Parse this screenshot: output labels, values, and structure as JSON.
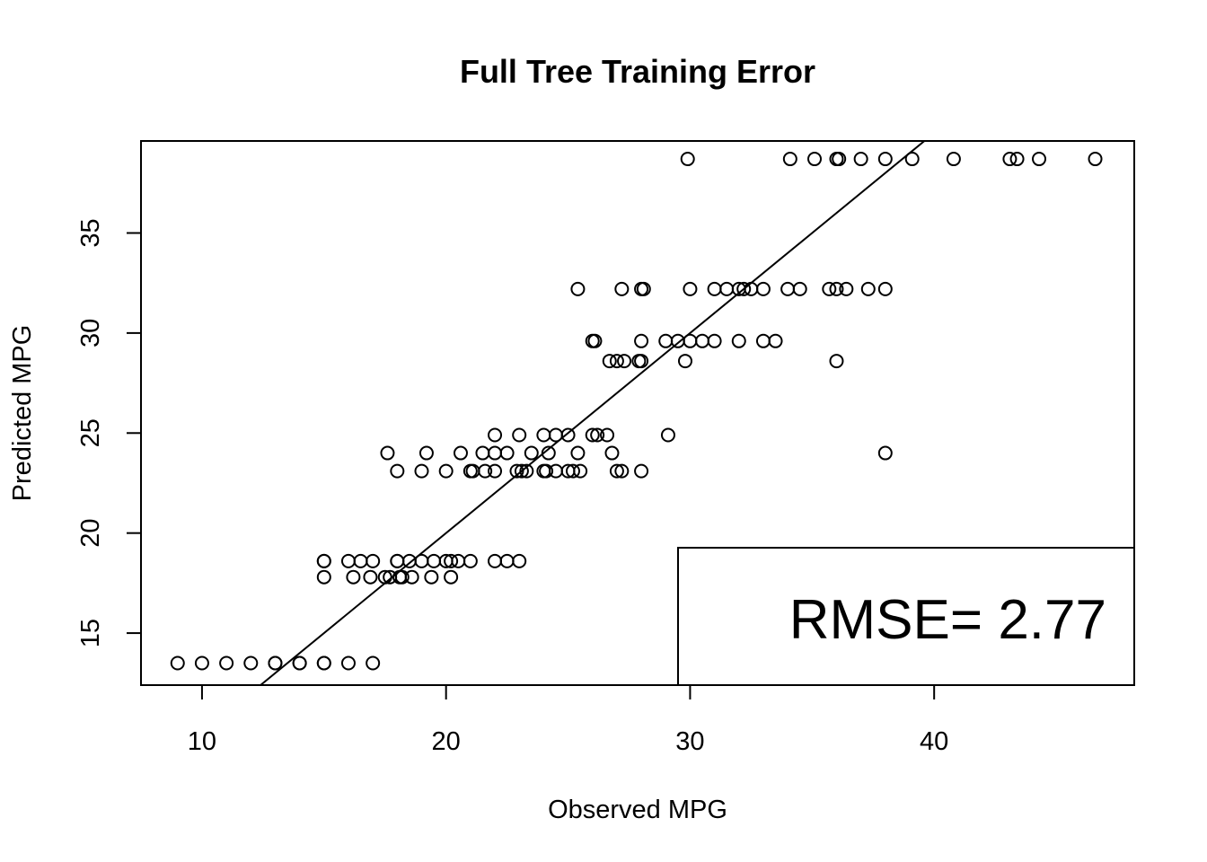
{
  "chart_data": {
    "type": "scatter",
    "title": "Full Tree Training Error",
    "xlabel": "Observed MPG",
    "ylabel": "Predicted MPG",
    "xlim": [
      7.5,
      48.2
    ],
    "ylim": [
      12.4,
      39.6
    ],
    "xticks": [
      10,
      20,
      30,
      40
    ],
    "yticks": [
      15,
      20,
      25,
      30,
      35
    ],
    "reference_line": {
      "slope": 1,
      "intercept": 0
    },
    "legend": {
      "text": "RMSE= 2.77",
      "position": "bottom-right"
    },
    "series": [
      {
        "x": [
          9,
          10,
          11,
          12,
          13,
          13,
          14,
          14,
          15,
          15,
          16,
          17,
          15,
          15,
          16,
          16.5,
          17,
          18,
          18,
          18.5,
          19,
          19.5,
          20,
          20.2,
          20.5,
          21,
          15,
          16.2,
          16.9,
          17.5,
          17.7,
          18.1,
          18.2,
          18.6,
          19.4,
          20.2,
          22,
          22.5,
          23,
          17.6,
          19.2,
          20.6,
          21.5,
          22,
          22.5,
          23.5,
          24.2,
          25.4,
          26.8,
          18,
          19,
          20,
          21,
          21.1,
          21.6,
          22,
          22.9,
          23.1,
          23.3,
          24,
          24.1,
          24.5,
          25,
          25.2,
          25.5,
          27,
          27.2,
          28,
          22,
          23,
          24,
          24.5,
          25,
          26,
          26.2,
          26.6,
          29.1,
          26,
          26.1,
          28,
          29,
          29.5,
          30,
          30.5,
          31,
          32,
          33,
          33.5,
          26.7,
          27,
          27.3,
          27.9,
          28,
          29.8,
          36,
          25.4,
          27.2,
          28,
          28.1,
          30,
          31,
          31.5,
          32,
          32.2,
          32.5,
          33,
          34,
          34.5,
          35.7,
          36,
          36.4,
          37.3,
          38,
          29.9,
          34.1,
          35.1,
          36,
          36.1,
          37,
          38,
          39.1,
          40.8,
          43.1,
          43.4,
          44.3,
          46.6,
          38
        ],
        "y": [
          13.5,
          13.5,
          13.5,
          13.5,
          13.5,
          13.5,
          13.5,
          13.5,
          13.5,
          13.5,
          13.5,
          13.5,
          18.6,
          18.6,
          18.6,
          18.6,
          18.6,
          18.6,
          18.6,
          18.6,
          18.6,
          18.6,
          18.6,
          18.6,
          18.6,
          18.6,
          17.8,
          17.8,
          17.8,
          17.8,
          17.8,
          17.8,
          17.8,
          17.8,
          17.8,
          17.8,
          18.6,
          18.6,
          18.6,
          24.0,
          24.0,
          24.0,
          24.0,
          24.0,
          24.0,
          24.0,
          24.0,
          24.0,
          24.0,
          23.1,
          23.1,
          23.1,
          23.1,
          23.1,
          23.1,
          23.1,
          23.1,
          23.1,
          23.1,
          23.1,
          23.1,
          23.1,
          23.1,
          23.1,
          23.1,
          23.1,
          23.1,
          23.1,
          24.9,
          24.9,
          24.9,
          24.9,
          24.9,
          24.9,
          24.9,
          24.9,
          24.9,
          29.6,
          29.6,
          29.6,
          29.6,
          29.6,
          29.6,
          29.6,
          29.6,
          29.6,
          29.6,
          29.6,
          28.6,
          28.6,
          28.6,
          28.6,
          28.6,
          28.6,
          28.6,
          32.2,
          32.2,
          32.2,
          32.2,
          32.2,
          32.2,
          32.2,
          32.2,
          32.2,
          32.2,
          32.2,
          32.2,
          32.2,
          32.2,
          32.2,
          32.2,
          32.2,
          32.2,
          38.7,
          38.7,
          38.7,
          38.7,
          38.7,
          38.7,
          38.7,
          38.7,
          38.7,
          38.7,
          38.7,
          38.7,
          38.7,
          24.0
        ]
      }
    ]
  }
}
